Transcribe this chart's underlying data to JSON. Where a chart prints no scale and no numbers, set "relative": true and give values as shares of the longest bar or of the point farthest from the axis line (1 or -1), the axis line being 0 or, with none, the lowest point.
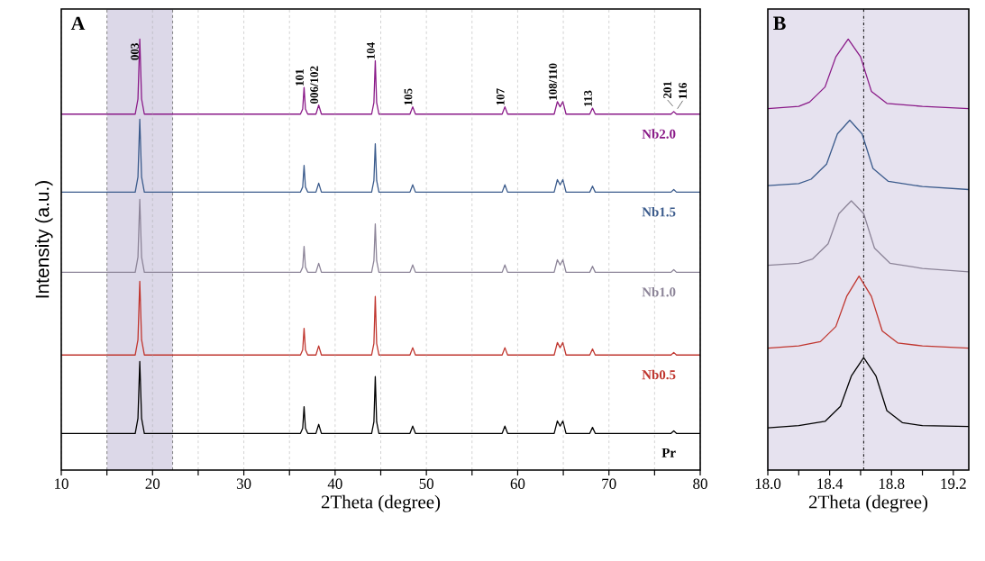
{
  "chart_data": [
    {
      "type": "line",
      "title": "A",
      "xlabel": "2Theta (degree)",
      "ylabel": "Intensity (a.u.)",
      "relative": true,
      "xlim": [
        10,
        80
      ],
      "xticks": [
        10,
        {
          "value": 15,
          "label": null
        },
        20,
        {
          "value": 25,
          "label": null
        },
        30,
        {
          "value": 35,
          "label": null
        },
        40,
        {
          "value": 45,
          "label": null
        },
        50,
        {
          "value": 55,
          "label": null
        },
        60,
        {
          "value": 65,
          "label": null
        },
        70,
        {
          "value": 75,
          "label": null
        },
        80
      ],
      "grid": "x",
      "bands": [
        {
          "axis": "x",
          "from": 15,
          "to": 22.2,
          "color": "#dcd8e8"
        }
      ],
      "ref_lines": [
        {
          "axis": "x",
          "value": 15,
          "line_style": "dashed",
          "color": "#808080"
        },
        {
          "axis": "x",
          "value": 22.2,
          "line_style": "dashed",
          "color": "#808080"
        }
      ],
      "x": [
        10,
        18.1,
        18.4,
        18.6,
        18.8,
        19.1,
        36.2,
        36.45,
        36.6,
        36.75,
        37.0,
        37.9,
        38.2,
        38.5,
        44.0,
        44.25,
        44.4,
        44.55,
        44.8,
        48.2,
        48.5,
        48.8,
        58.3,
        58.6,
        58.9,
        64.0,
        64.35,
        64.65,
        64.95,
        65.3,
        67.9,
        68.2,
        68.5,
        76.8,
        77.1,
        77.4,
        80
      ],
      "series": [
        {
          "name": "Pr",
          "color": "#000000",
          "values": [
            0.085,
            0.085,
            0.12,
            0.252,
            0.12,
            0.085,
            0.085,
            0.097,
            0.147,
            0.097,
            0.085,
            0.085,
            0.106,
            0.085,
            0.085,
            0.112,
            0.217,
            0.112,
            0.085,
            0.085,
            0.102,
            0.085,
            0.085,
            0.102,
            0.085,
            0.085,
            0.114,
            0.102,
            0.114,
            0.085,
            0.085,
            0.099,
            0.085,
            0.085,
            0.091,
            0.085,
            0.085
          ]
        },
        {
          "name": "Nb0.5",
          "color": "#c0362f",
          "values": [
            0.267,
            0.267,
            0.302,
            0.438,
            0.302,
            0.267,
            0.267,
            0.279,
            0.329,
            0.279,
            0.267,
            0.267,
            0.288,
            0.267,
            0.267,
            0.294,
            0.403,
            0.294,
            0.267,
            0.267,
            0.284,
            0.267,
            0.267,
            0.284,
            0.267,
            0.267,
            0.296,
            0.284,
            0.296,
            0.267,
            0.267,
            0.281,
            0.267,
            0.267,
            0.273,
            0.267,
            0.267
          ]
        },
        {
          "name": "Nb1.0",
          "color": "#8c8498",
          "values": [
            0.459,
            0.459,
            0.494,
            0.628,
            0.494,
            0.459,
            0.459,
            0.471,
            0.519,
            0.471,
            0.459,
            0.459,
            0.48,
            0.459,
            0.459,
            0.486,
            0.571,
            0.486,
            0.459,
            0.459,
            0.476,
            0.459,
            0.459,
            0.476,
            0.459,
            0.459,
            0.488,
            0.476,
            0.488,
            0.459,
            0.459,
            0.473,
            0.459,
            0.459,
            0.465,
            0.459,
            0.459
          ]
        },
        {
          "name": "Nb1.5",
          "color": "#3b5b8c",
          "values": [
            0.645,
            0.645,
            0.68,
            0.814,
            0.68,
            0.645,
            0.645,
            0.657,
            0.707,
            0.657,
            0.645,
            0.645,
            0.666,
            0.645,
            0.645,
            0.672,
            0.757,
            0.672,
            0.645,
            0.645,
            0.662,
            0.645,
            0.645,
            0.662,
            0.645,
            0.645,
            0.674,
            0.662,
            0.674,
            0.645,
            0.645,
            0.659,
            0.645,
            0.645,
            0.651,
            0.645,
            0.645
          ]
        },
        {
          "name": "Nb2.0",
          "color": "#8a1a88",
          "values": [
            0.826,
            0.826,
            0.861,
            1.0,
            0.861,
            0.826,
            0.826,
            0.838,
            0.888,
            0.838,
            0.826,
            0.826,
            0.847,
            0.826,
            0.826,
            0.853,
            0.95,
            0.853,
            0.826,
            0.826,
            0.843,
            0.826,
            0.826,
            0.843,
            0.826,
            0.826,
            0.855,
            0.843,
            0.855,
            0.826,
            0.826,
            0.84,
            0.826,
            0.826,
            0.832,
            0.826,
            0.826
          ]
        }
      ],
      "annotations": [
        {
          "text": "003",
          "x": 18.6,
          "y": 1.0
        },
        {
          "text": "101",
          "x": 36.6,
          "y": 0.888
        },
        {
          "text": "006/102",
          "x": 38.2,
          "y": 0.847
        },
        {
          "text": "104",
          "x": 44.4,
          "y": 0.95
        },
        {
          "text": "105",
          "x": 48.5,
          "y": 0.843
        },
        {
          "text": "107",
          "x": 58.6,
          "y": 0.843
        },
        {
          "text": "108/110",
          "x": 64.35,
          "y": 0.855
        },
        {
          "text": "113",
          "x": 68.2,
          "y": 0.84
        },
        {
          "text": "201",
          "x": 77.1,
          "y": 0.832
        },
        {
          "text": "116",
          "x": 77.4,
          "y": 0.826
        }
      ]
    },
    {
      "type": "line",
      "title": "B",
      "xlabel": "2Theta (degree)",
      "relative": true,
      "xlim": [
        18.0,
        19.3
      ],
      "xticks": [
        {
          "value": 18.0,
          "label": "18.0"
        },
        {
          "value": 18.2,
          "label": null
        },
        18.4,
        {
          "value": 18.6,
          "label": null
        },
        18.8,
        {
          "value": 19.0,
          "label": null
        },
        19.2
      ],
      "bands": [
        {
          "axis": "x",
          "from": 18.0,
          "to": 19.3,
          "color": "#e6e2ef"
        }
      ],
      "ref_lines": [
        {
          "axis": "x",
          "value": 18.62,
          "line_style": "dashdot",
          "color": "#000000"
        }
      ],
      "series": [
        {
          "color": "#000000",
          "x": [
            18.0,
            18.2,
            18.37,
            18.47,
            18.54,
            18.62,
            18.7,
            18.77,
            18.87,
            19.0,
            19.3
          ],
          "values": [
            0.098,
            0.103,
            0.113,
            0.148,
            0.218,
            0.261,
            0.218,
            0.138,
            0.11,
            0.103,
            0.101
          ]
        },
        {
          "color": "#c0362f",
          "x": [
            18.0,
            18.2,
            18.34,
            18.44,
            18.51,
            18.59,
            18.67,
            18.74,
            18.84,
            19.0,
            19.3
          ],
          "values": [
            0.283,
            0.288,
            0.298,
            0.333,
            0.403,
            0.45,
            0.403,
            0.323,
            0.295,
            0.288,
            0.283
          ]
        },
        {
          "color": "#8c8498",
          "x": [
            18.0,
            18.2,
            18.29,
            18.39,
            18.46,
            18.54,
            18.62,
            18.69,
            18.79,
            19.0,
            19.3
          ],
          "values": [
            0.475,
            0.48,
            0.49,
            0.525,
            0.595,
            0.625,
            0.595,
            0.515,
            0.48,
            0.468,
            0.46
          ]
        },
        {
          "color": "#3b5b8c",
          "x": [
            18.0,
            18.2,
            18.28,
            18.38,
            18.45,
            18.53,
            18.61,
            18.68,
            18.78,
            19.0,
            19.3
          ],
          "values": [
            0.66,
            0.665,
            0.675,
            0.71,
            0.78,
            0.812,
            0.78,
            0.7,
            0.67,
            0.658,
            0.651
          ]
        },
        {
          "color": "#8a1a88",
          "x": [
            18.0,
            18.2,
            18.27,
            18.37,
            18.44,
            18.52,
            18.6,
            18.67,
            18.77,
            19.0,
            19.3
          ],
          "values": [
            0.839,
            0.844,
            0.854,
            0.889,
            0.959,
            1.0,
            0.959,
            0.879,
            0.851,
            0.844,
            0.839
          ]
        }
      ]
    }
  ]
}
